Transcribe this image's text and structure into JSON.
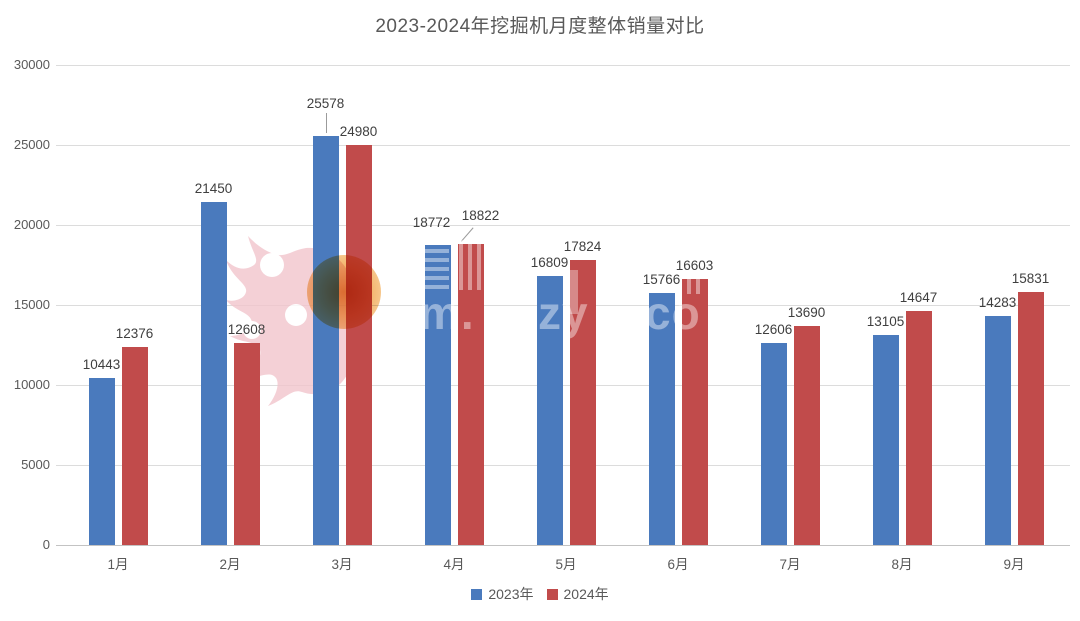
{
  "chart_data": {
    "type": "bar",
    "title": "2023-2024年挖掘机月度整体销量对比",
    "categories": [
      "1月",
      "2月",
      "3月",
      "4月",
      "5月",
      "6月",
      "7月",
      "8月",
      "9月"
    ],
    "series": [
      {
        "name": "2023年",
        "color": "#4A7ABD",
        "values": [
          10443,
          21450,
          25578,
          18772,
          16809,
          15766,
          12606,
          13105,
          14283
        ]
      },
      {
        "name": "2024年",
        "color": "#C14B4B",
        "values": [
          12376,
          12608,
          24980,
          18822,
          17824,
          16603,
          13690,
          14647,
          15831
        ]
      }
    ],
    "ylim": [
      0,
      30000
    ],
    "ytick_step": 5000,
    "ytick_labels": [
      "0",
      "5000",
      "10000",
      "15000",
      "20000",
      "25000",
      "30000"
    ],
    "grid": true,
    "legend_position": "bottom-center",
    "value_labels": true
  },
  "watermark": {
    "text_fragments": [
      "m.",
      "zy",
      "co"
    ],
    "flame_color": "#F2C5CD",
    "circle_color": "#F0A046"
  },
  "colors": {
    "background": "#FFFFFF",
    "grid": "#DCDCDC",
    "axis_line": "#C3C3C3",
    "tick_text": "#595959",
    "value_text": "#3F3F3F",
    "title_text": "#595959"
  }
}
